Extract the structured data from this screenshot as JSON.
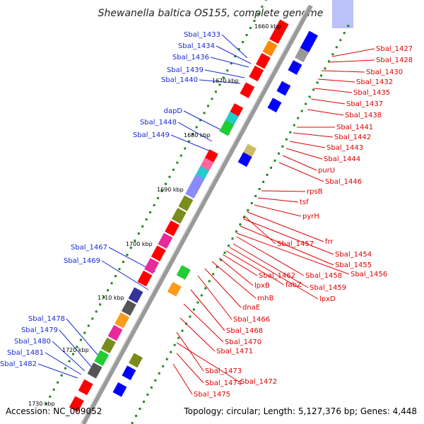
{
  "title": "Shewanella baltica OS155, complete genome",
  "footer": {
    "accession": "Accession: NC_009052",
    "topology": "Topology: circular; Length: 5,127,376 bp; Genes: 4,448"
  },
  "kbp_ticks": [
    "1660 kbp",
    "1670 kbp",
    "1680 kbp",
    "1690 kbp",
    "1700 kbp",
    "1710 kbp",
    "1720 kbp",
    "1730 kbp"
  ],
  "left_labels": [
    "Sbal_1433",
    "Sbal_1434",
    "Sbal_1436",
    "Sbal_1439",
    "Sbal_1440",
    "dapD",
    "Sbal_1448",
    "Sbal_1449",
    "Sbal_1467",
    "Sbal_1469",
    "Sbal_1478",
    "Sbal_1479",
    "Sbal_1480",
    "Sbal_1481",
    "Sbal_1482"
  ],
  "right_labels": [
    "Sbal_1427",
    "Sbal_1428",
    "Sbal_1430",
    "Sbal_1432",
    "Sbal_1435",
    "Sbal_1437",
    "Sbal_1438",
    "Sbal_1441",
    "Sbal_1442",
    "Sbal_1443",
    "Sbal_1444",
    "purU",
    "Sbal_1446",
    "rpsB",
    "tsf",
    "pyrH",
    "frr",
    "Sbal_1457",
    "Sbal_1454",
    "Sbal_1455",
    "Sbal_1456",
    "Sbal_1458",
    "Sbal_1459",
    "lpxD",
    "fabZ",
    "Sbal_1462",
    "lpxB",
    "rnhB",
    "dnaE",
    "Sbal_1466",
    "Sbal_1468",
    "Sbal_1470",
    "Sbal_1471",
    "Sbal_1473",
    "Sbal_1472",
    "Sbal_1474",
    "Sbal_1475"
  ],
  "colors": {
    "forward_strand": "#ff0000",
    "reverse_strand": "#0000ff",
    "backbone": "#888888",
    "tick": "#1a8a1a"
  }
}
